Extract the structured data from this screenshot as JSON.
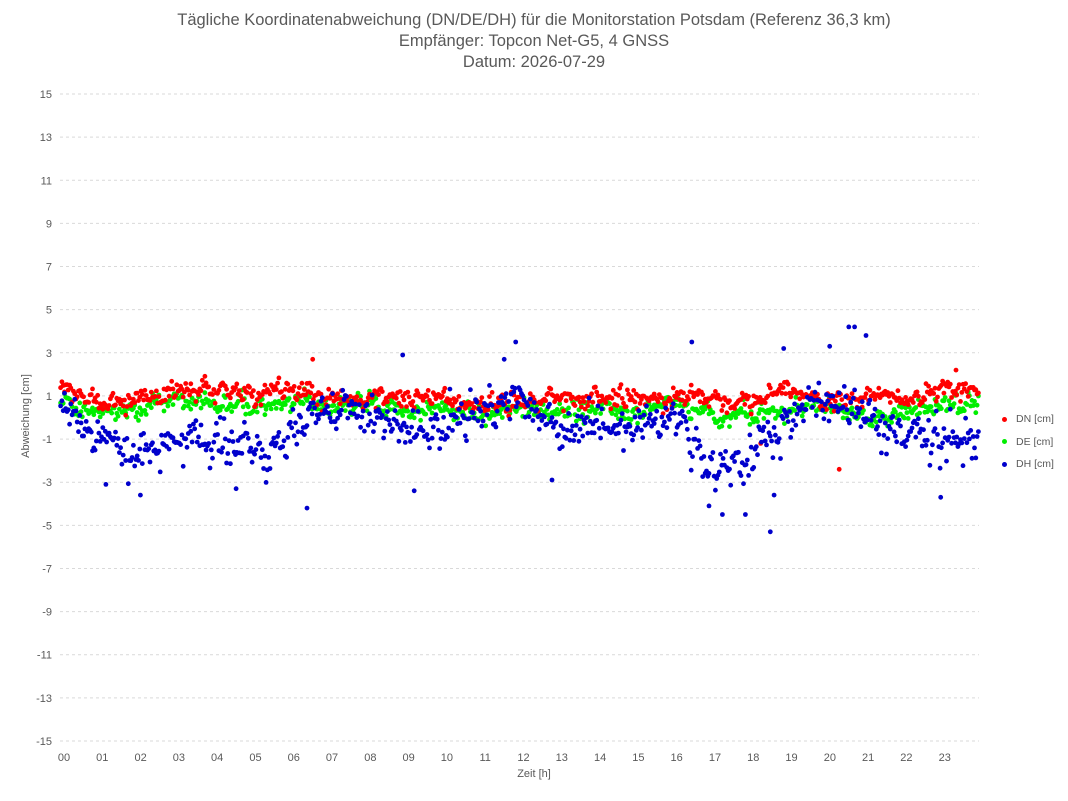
{
  "chart_data": {
    "type": "scatter",
    "title": "Tägliche Koordinatenabweichung (DN/DE/DH) für die Monitorstation Potsdam (Referenz 36,3 km)",
    "subtitle_1": "Empfänger: Topcon Net-G5, 4 GNSS",
    "subtitle_2": "Datum: 2026-07-29",
    "xlabel": "Zeit [h]",
    "ylabel": "Abweichung [cm]",
    "xlim": [
      0,
      24
    ],
    "ylim": [
      -15,
      15
    ],
    "x_ticks": [
      "00",
      "01",
      "02",
      "03",
      "04",
      "05",
      "06",
      "07",
      "08",
      "09",
      "10",
      "11",
      "12",
      "13",
      "14",
      "15",
      "16",
      "17",
      "18",
      "19",
      "20",
      "21",
      "22",
      "23"
    ],
    "y_ticks": [
      "15",
      "13",
      "11",
      "9",
      "7",
      "5",
      "3",
      "1",
      "-1",
      "-3",
      "-5",
      "-7",
      "-9",
      "-11",
      "-13",
      "-15"
    ],
    "grid": "horizontal dashed",
    "legend_position": "right",
    "sampling": "every 2 minutes (approx.)",
    "series": [
      {
        "name": "DN [cm]",
        "color": "#ff0000",
        "profile_hourly": [
          1.4,
          0.6,
          0.9,
          1.3,
          1.4,
          1.1,
          1.2,
          0.9,
          0.8,
          0.9,
          1.0,
          0.6,
          0.7,
          0.9,
          1.0,
          0.8,
          0.9,
          0.9,
          0.6,
          1.3,
          0.8,
          0.9,
          0.9,
          1.4
        ],
        "noise_sd": 0.35,
        "outliers": [
          [
            6.6,
            2.7
          ],
          [
            20.35,
            -2.4
          ],
          [
            18.3,
            -1.2
          ],
          [
            23.4,
            2.2
          ]
        ]
      },
      {
        "name": "DE [cm]",
        "color": "#00ee00",
        "profile_hourly": [
          0.7,
          0.3,
          0.3,
          0.9,
          0.6,
          0.5,
          0.8,
          0.5,
          0.6,
          0.3,
          0.5,
          0.1,
          0.4,
          0.3,
          0.4,
          0.2,
          0.6,
          0.1,
          0.2,
          0.4,
          0.6,
          0.0,
          0.2,
          0.5
        ],
        "noise_sd": 0.35,
        "outliers": []
      },
      {
        "name": "DH [cm]",
        "color": "#0000cc",
        "profile_hourly": [
          0.4,
          -0.8,
          -1.9,
          -1.2,
          -0.8,
          -1.6,
          -1.1,
          0.6,
          0.2,
          -0.4,
          -0.7,
          0.1,
          1.1,
          -0.6,
          -0.4,
          -0.3,
          0.2,
          -2.3,
          -2.0,
          0.0,
          1.0,
          0.2,
          -0.6,
          -1.2
        ],
        "noise_sd": 0.75,
        "outliers": [
          [
            8.95,
            2.9
          ],
          [
            9.25,
            -3.4
          ],
          [
            11.6,
            2.7
          ],
          [
            11.9,
            3.5
          ],
          [
            12.85,
            -2.9
          ],
          [
            16.5,
            3.5
          ],
          [
            16.95,
            -4.1
          ],
          [
            17.3,
            -4.5
          ],
          [
            17.9,
            -4.5
          ],
          [
            18.55,
            -5.3
          ],
          [
            18.65,
            -3.6
          ],
          [
            18.9,
            3.2
          ],
          [
            20.1,
            3.3
          ],
          [
            20.6,
            4.2
          ],
          [
            20.75,
            4.2
          ],
          [
            21.05,
            3.8
          ],
          [
            23.0,
            -3.7
          ],
          [
            6.45,
            -4.2
          ],
          [
            4.6,
            -3.3
          ],
          [
            2.1,
            -3.6
          ],
          [
            1.2,
            -3.1
          ]
        ]
      }
    ]
  }
}
